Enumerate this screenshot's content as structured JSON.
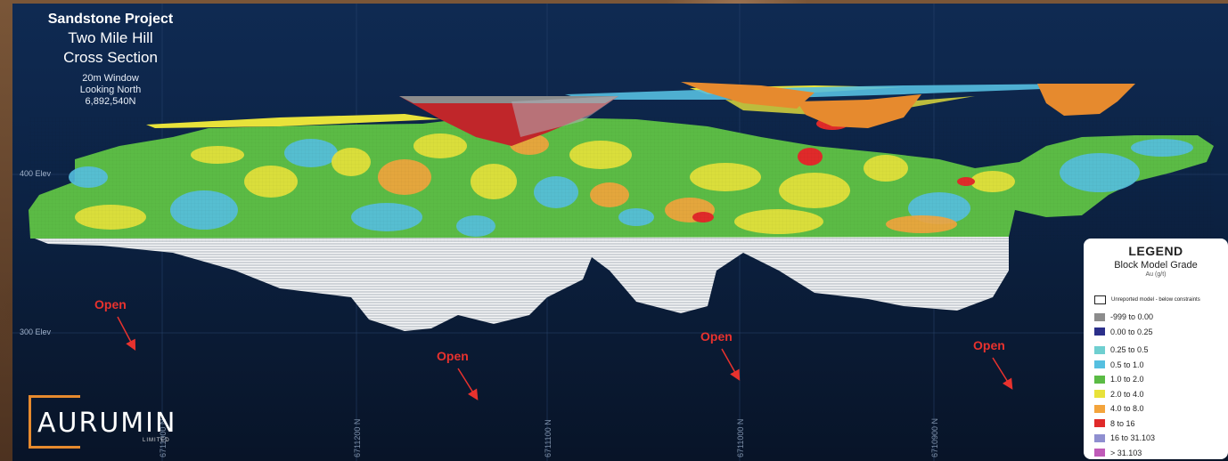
{
  "title": {
    "project": "Sandstone Project",
    "line1": "Two Mile Hill",
    "line2": "Cross Section",
    "window": "20m Window",
    "looking": "Looking North",
    "northing": "6,892,540N"
  },
  "elevations": [
    "400 Elev",
    "300 Elev"
  ],
  "northings": [
    "6711000 N",
    "6711200 N",
    "6711100 N",
    "6711000 N",
    "6710900 N"
  ],
  "open_labels": [
    "Open",
    "Open",
    "Open",
    "Open"
  ],
  "legend": {
    "title": "LEGEND",
    "subtitle": "Block Model Grade",
    "unit": "Au (g/t)",
    "items": [
      {
        "label": "Unreported model - below constraints",
        "color": "#ffffff"
      },
      {
        "label": "-999 to 0.00",
        "color": "#8c8c8c"
      },
      {
        "label": "0.00 to 0.25",
        "color": "#2b2f8a"
      },
      {
        "label": "0.25 to 0.5",
        "color": "#6fcfd0"
      },
      {
        "label": "0.5 to 1.0",
        "color": "#55bfe0"
      },
      {
        "label": "1.0 to 2.0",
        "color": "#5bbb45"
      },
      {
        "label": "2.0 to 4.0",
        "color": "#e8e23a"
      },
      {
        "label": "4.0 to 8.0",
        "color": "#f3a43c"
      },
      {
        "label": "8 to 16",
        "color": "#e02a2a"
      },
      {
        "label": "16 to 31.103",
        "color": "#8f8fd0"
      },
      {
        "label": "> 31.103",
        "color": "#c05bb8"
      }
    ]
  },
  "logo": {
    "name": "AURUMIN",
    "tagline": "LIMITED"
  },
  "colors": {
    "background": "#0c2345",
    "open_red": "#e8322e",
    "pit_red": "#c0262a",
    "pit_orange": "#e68a2e"
  }
}
